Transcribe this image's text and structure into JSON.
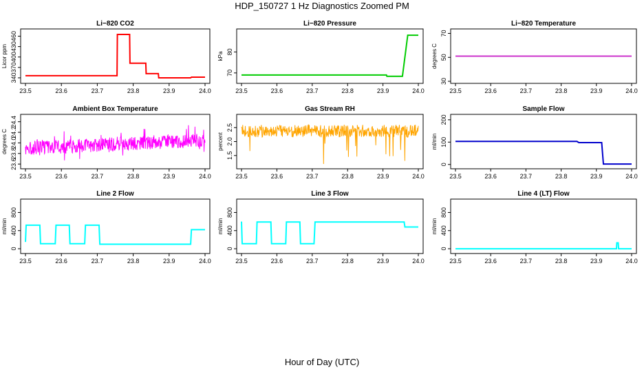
{
  "figure": {
    "title": "HDP_150727  1 Hz Diagnostics Zoomed PM",
    "xlabel": "Hour of Day (UTC)"
  },
  "chart_data": [
    {
      "type": "line",
      "title": "Li−820 CO2",
      "ylabel": "Licor ppm",
      "xlim": [
        23.5,
        24.0
      ],
      "ylim": [
        330,
        475
      ],
      "xticks": [
        "23.5",
        "23.6",
        "23.7",
        "23.8",
        "23.9",
        "24.0"
      ],
      "yticks": [
        "340",
        "370",
        "400",
        "430",
        "460"
      ],
      "color": "#ff0000",
      "series": [
        {
          "x": [
            23.5,
            23.755,
            23.756,
            23.79,
            23.791,
            23.835,
            23.836,
            23.87,
            23.871,
            23.96,
            23.962,
            24.0
          ],
          "y": [
            346,
            346,
            465,
            465,
            382,
            382,
            352,
            352,
            340,
            340,
            342,
            342
          ]
        }
      ]
    },
    {
      "type": "line",
      "title": "Li−820 Pressure",
      "ylabel": "kPa",
      "xlim": [
        23.5,
        24.0
      ],
      "ylim": [
        66,
        90
      ],
      "xticks": [
        "23.5",
        "23.6",
        "23.7",
        "23.8",
        "23.9",
        "24.0"
      ],
      "yticks": [
        "70",
        "80"
      ],
      "color": "#00cc00",
      "series": [
        {
          "x": [
            23.5,
            23.91,
            23.911,
            23.955,
            23.97,
            24.0
          ],
          "y": [
            69,
            69,
            68.4,
            68.4,
            88,
            88
          ]
        }
      ]
    },
    {
      "type": "line",
      "title": "Li−820 Temperature",
      "ylabel": "degrees C",
      "xlim": [
        23.5,
        24.0
      ],
      "ylim": [
        30,
        72
      ],
      "xticks": [
        "23.5",
        "23.6",
        "23.7",
        "23.8",
        "23.9",
        "24.0"
      ],
      "yticks": [
        "30",
        "50",
        "70"
      ],
      "color": "#cc33cc",
      "series": [
        {
          "x": [
            23.5,
            24.0
          ],
          "y": [
            51,
            51
          ]
        }
      ]
    },
    {
      "type": "line",
      "title": "Ambient Box Temperature",
      "ylabel": "degrees C",
      "xlim": [
        23.5,
        24.0
      ],
      "ylim": [
        23.55,
        24.5
      ],
      "xticks": [
        "23.5",
        "23.6",
        "23.7",
        "23.8",
        "23.9",
        "24.0"
      ],
      "yticks": [
        "23.6",
        "23.8",
        "24.0",
        "24.2",
        "24.4"
      ],
      "color": "#ff00ff",
      "series": [
        {
          "x": [
            23.5,
            24.0
          ],
          "y": [
            23.9,
            24.05
          ],
          "noise": "high-frequency, approx ±0.12"
        }
      ]
    },
    {
      "type": "line",
      "title": "Gas Stream RH",
      "ylabel": "percent",
      "xlim": [
        23.5,
        24.0
      ],
      "ylim": [
        1.1,
        2.9
      ],
      "xticks": [
        "23.5",
        "23.6",
        "23.7",
        "23.8",
        "23.9",
        "24.0"
      ],
      "yticks": [
        "1.5",
        "2.0",
        "2.5"
      ],
      "color": "#ffa500",
      "series": [
        {
          "x": [
            23.5,
            24.0
          ],
          "y": [
            2.38,
            2.38
          ],
          "noise": "approx ±0.2 with downward spikes to about 1.1"
        }
      ]
    },
    {
      "type": "line",
      "title": "Sample Flow",
      "ylabel": "ml/min",
      "xlim": [
        23.5,
        24.0
      ],
      "ylim": [
        -10,
        215
      ],
      "xticks": [
        "23.5",
        "23.6",
        "23.7",
        "23.8",
        "23.9",
        "24.0"
      ],
      "yticks": [
        "0",
        "100",
        "200"
      ],
      "color": "#0000cc",
      "series": [
        {
          "x": [
            23.5,
            23.845,
            23.85,
            23.915,
            23.92,
            24.0
          ],
          "y": [
            103,
            103,
            98,
            98,
            2,
            2
          ]
        }
      ]
    },
    {
      "type": "line",
      "title": "Line 2 Flow",
      "ylabel": "ml/min",
      "xlim": [
        23.5,
        24.0
      ],
      "ylim": [
        -60,
        1050
      ],
      "xticks": [
        "23.5",
        "23.6",
        "23.7",
        "23.8",
        "23.9",
        "24.0"
      ],
      "yticks": [
        "0",
        "400",
        "800"
      ],
      "color": "#00ffff",
      "series": [
        {
          "x": [
            23.5,
            23.502,
            23.54,
            23.542,
            23.583,
            23.585,
            23.622,
            23.624,
            23.665,
            23.667,
            23.705,
            23.707,
            23.96,
            23.962,
            24.0
          ],
          "y": [
            150,
            520,
            520,
            110,
            110,
            520,
            520,
            110,
            110,
            520,
            520,
            100,
            100,
            420,
            420
          ]
        }
      ]
    },
    {
      "type": "line",
      "title": "Line 3 Flow",
      "ylabel": "ml/min",
      "xlim": [
        23.5,
        24.0
      ],
      "ylim": [
        -60,
        1050
      ],
      "xticks": [
        "23.5",
        "23.6",
        "23.7",
        "23.8",
        "23.9",
        "24.0"
      ],
      "yticks": [
        "0",
        "400",
        "800"
      ],
      "color": "#00ffff",
      "series": [
        {
          "x": [
            23.5,
            23.502,
            23.542,
            23.544,
            23.583,
            23.585,
            23.625,
            23.627,
            23.665,
            23.667,
            23.705,
            23.708,
            23.96,
            23.962,
            24.0
          ],
          "y": [
            600,
            110,
            110,
            590,
            590,
            110,
            110,
            590,
            590,
            110,
            110,
            590,
            590,
            480,
            480
          ]
        }
      ]
    },
    {
      "type": "line",
      "title": "Line 4 (LT) Flow",
      "ylabel": "ml/min",
      "xlim": [
        23.5,
        24.0
      ],
      "ylim": [
        -60,
        1050
      ],
      "xticks": [
        "23.5",
        "23.6",
        "23.7",
        "23.8",
        "23.9",
        "24.0"
      ],
      "yticks": [
        "0",
        "400",
        "800"
      ],
      "color": "#00ffff",
      "series": [
        {
          "x": [
            23.5,
            23.957,
            23.958,
            23.962,
            23.963,
            24.0
          ],
          "y": [
            0,
            0,
            130,
            130,
            0,
            0
          ]
        }
      ]
    }
  ]
}
